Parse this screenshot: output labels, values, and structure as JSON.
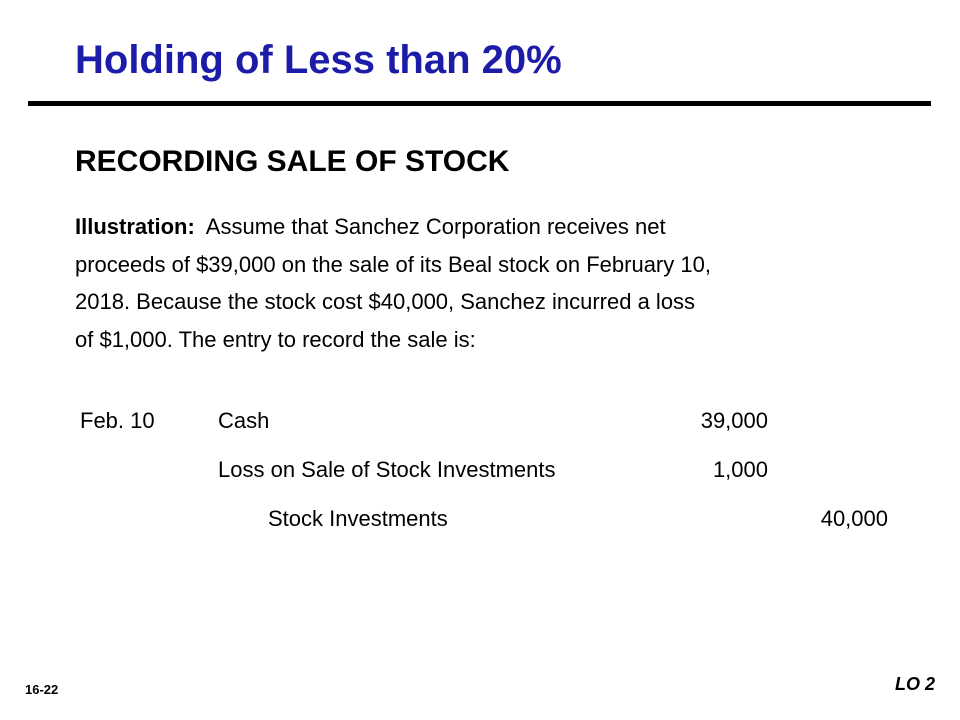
{
  "slide": {
    "title": "Holding of Less than 20%",
    "subtitle": "RECORDING SALE OF STOCK",
    "illustration_label": "Illustration:",
    "paragraph_lines": [
      "Assume that Sanchez Corporation receives net",
      "proceeds of $39,000 on the sale of its Beal stock on February 10,",
      "2018.  Because the stock cost $40,000, Sanchez incurred a loss",
      "of $1,000.  The entry to record the sale is:"
    ]
  },
  "journal_entry": {
    "date": "Feb. 10",
    "rows": [
      {
        "account": "Cash",
        "debit": "39,000",
        "credit": ""
      },
      {
        "account": "Loss on Sale of Stock Investments",
        "debit": "1,000",
        "credit": ""
      },
      {
        "account": "Stock Investments",
        "debit": "",
        "credit": "40,000"
      }
    ]
  },
  "footer": {
    "page_number": "16-22",
    "learning_objective": "LO 2"
  }
}
